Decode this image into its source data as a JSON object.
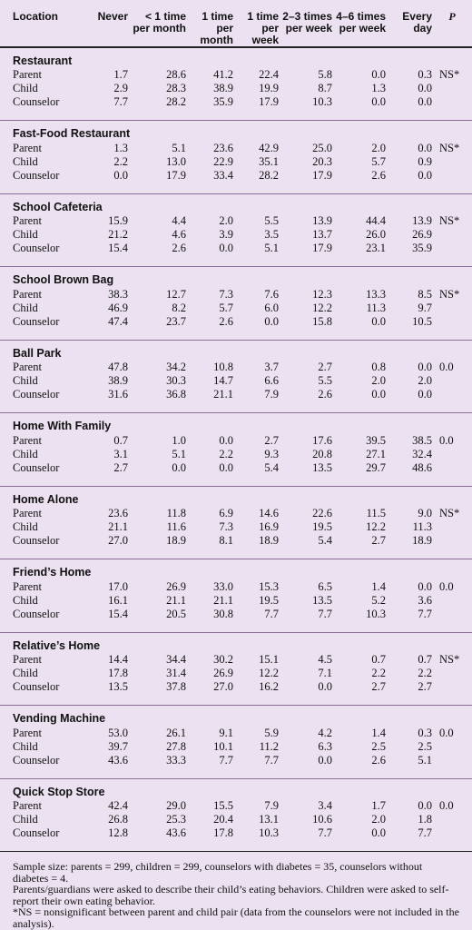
{
  "columns": [
    "Location",
    "Never",
    "< 1 time per month",
    "1 time per month",
    "1 time per week",
    "2–3 times per week",
    "4–6 times per week",
    "Every day",
    "P"
  ],
  "groups": [
    {
      "title": "Restaurant",
      "p": "NS*",
      "rows": [
        {
          "role": "Parent",
          "values": [
            "1.7",
            "28.6",
            "41.2",
            "22.4",
            "5.8",
            "0.0",
            "0.3"
          ]
        },
        {
          "role": "Child",
          "values": [
            "2.9",
            "28.3",
            "38.9",
            "19.9",
            "8.7",
            "1.3",
            "0.0"
          ]
        },
        {
          "role": "Counselor",
          "values": [
            "7.7",
            "28.2",
            "35.9",
            "17.9",
            "10.3",
            "0.0",
            "0.0"
          ]
        }
      ]
    },
    {
      "title": "Fast-Food Restaurant",
      "p": "NS*",
      "rows": [
        {
          "role": "Parent",
          "values": [
            "1.3",
            "5.1",
            "23.6",
            "42.9",
            "25.0",
            "2.0",
            "0.0"
          ]
        },
        {
          "role": "Child",
          "values": [
            "2.2",
            "13.0",
            "22.9",
            "35.1",
            "20.3",
            "5.7",
            "0.9"
          ]
        },
        {
          "role": "Counselor",
          "values": [
            "0.0",
            "17.9",
            "33.4",
            "28.2",
            "17.9",
            "2.6",
            "0.0"
          ]
        }
      ]
    },
    {
      "title": "School Cafeteria",
      "p": "NS*",
      "rows": [
        {
          "role": "Parent",
          "values": [
            "15.9",
            "4.4",
            "2.0",
            "5.5",
            "13.9",
            "44.4",
            "13.9"
          ]
        },
        {
          "role": "Child",
          "values": [
            "21.2",
            "4.6",
            "3.9",
            "3.5",
            "13.7",
            "26.0",
            "26.9"
          ]
        },
        {
          "role": "Counselor",
          "values": [
            "15.4",
            "2.6",
            "0.0",
            "5.1",
            "17.9",
            "23.1",
            "35.9"
          ]
        }
      ]
    },
    {
      "title": "School Brown Bag",
      "p": "NS*",
      "rows": [
        {
          "role": "Parent",
          "values": [
            "38.3",
            "12.7",
            "7.3",
            "7.6",
            "12.3",
            "13.3",
            "8.5"
          ]
        },
        {
          "role": "Child",
          "values": [
            "46.9",
            "8.2",
            "5.7",
            "6.0",
            "12.2",
            "11.3",
            "9.7"
          ]
        },
        {
          "role": "Counselor",
          "values": [
            "47.4",
            "23.7",
            "2.6",
            "0.0",
            "15.8",
            "0.0",
            "10.5"
          ]
        }
      ]
    },
    {
      "title": "Ball Park",
      "p": "0.0",
      "rows": [
        {
          "role": "Parent",
          "values": [
            "47.8",
            "34.2",
            "10.8",
            "3.7",
            "2.7",
            "0.8",
            "0.0"
          ]
        },
        {
          "role": "Child",
          "values": [
            "38.9",
            "30.3",
            "14.7",
            "6.6",
            "5.5",
            "2.0",
            "2.0"
          ]
        },
        {
          "role": "Counselor",
          "values": [
            "31.6",
            "36.8",
            "21.1",
            "7.9",
            "2.6",
            "0.0",
            "0.0"
          ]
        }
      ]
    },
    {
      "title": "Home With Family",
      "p": "0.0",
      "rows": [
        {
          "role": "Parent",
          "values": [
            "0.7",
            "1.0",
            "0.0",
            "2.7",
            "17.6",
            "39.5",
            "38.5"
          ]
        },
        {
          "role": "Child",
          "values": [
            "3.1",
            "5.1",
            "2.2",
            "9.3",
            "20.8",
            "27.1",
            "32.4"
          ]
        },
        {
          "role": "Counselor",
          "values": [
            "2.7",
            "0.0",
            "0.0",
            "5.4",
            "13.5",
            "29.7",
            "48.6"
          ]
        }
      ]
    },
    {
      "title": "Home Alone",
      "p": "NS*",
      "rows": [
        {
          "role": "Parent",
          "values": [
            "23.6",
            "11.8",
            "6.9",
            "14.6",
            "22.6",
            "11.5",
            "9.0"
          ]
        },
        {
          "role": "Child",
          "values": [
            "21.1",
            "11.6",
            "7.3",
            "16.9",
            "19.5",
            "12.2",
            "11.3"
          ]
        },
        {
          "role": "Counselor",
          "values": [
            "27.0",
            "18.9",
            "8.1",
            "18.9",
            "5.4",
            "2.7",
            "18.9"
          ]
        }
      ]
    },
    {
      "title": "Friend’s Home",
      "p": "0.0",
      "rows": [
        {
          "role": "Parent",
          "values": [
            "17.0",
            "26.9",
            "33.0",
            "15.3",
            "6.5",
            "1.4",
            "0.0"
          ]
        },
        {
          "role": "Child",
          "values": [
            "16.1",
            "21.1",
            "21.1",
            "19.5",
            "13.5",
            "5.2",
            "3.6"
          ]
        },
        {
          "role": "Counselor",
          "values": [
            "15.4",
            "20.5",
            "30.8",
            "7.7",
            "7.7",
            "10.3",
            "7.7"
          ]
        }
      ]
    },
    {
      "title": "Relative’s Home",
      "p": "NS*",
      "rows": [
        {
          "role": "Parent",
          "values": [
            "14.4",
            "34.4",
            "30.2",
            "15.1",
            "4.5",
            "0.7",
            "0.7"
          ]
        },
        {
          "role": "Child",
          "values": [
            "17.8",
            "31.4",
            "26.9",
            "12.2",
            "7.1",
            "2.2",
            "2.2"
          ]
        },
        {
          "role": "Counselor",
          "values": [
            "13.5",
            "37.8",
            "27.0",
            "16.2",
            "0.0",
            "2.7",
            "2.7"
          ]
        }
      ]
    },
    {
      "title": "Vending Machine",
      "p": "0.0",
      "rows": [
        {
          "role": "Parent",
          "values": [
            "53.0",
            "26.1",
            "9.1",
            "5.9",
            "4.2",
            "1.4",
            "0.3"
          ]
        },
        {
          "role": "Child",
          "values": [
            "39.7",
            "27.8",
            "10.1",
            "11.2",
            "6.3",
            "2.5",
            "2.5"
          ]
        },
        {
          "role": "Counselor",
          "values": [
            "43.6",
            "33.3",
            "7.7",
            "7.7",
            "0.0",
            "2.6",
            "5.1"
          ]
        }
      ]
    },
    {
      "title": "Quick Stop Store",
      "p": "0.0",
      "rows": [
        {
          "role": "Parent",
          "values": [
            "42.4",
            "29.0",
            "15.5",
            "7.9",
            "3.4",
            "1.7",
            "0.0"
          ]
        },
        {
          "role": "Child",
          "values": [
            "26.8",
            "25.3",
            "20.4",
            "13.1",
            "10.6",
            "2.0",
            "1.8"
          ]
        },
        {
          "role": "Counselor",
          "values": [
            "12.8",
            "43.6",
            "17.8",
            "10.3",
            "7.7",
            "0.0",
            "7.7"
          ]
        }
      ]
    }
  ],
  "notes": [
    "Sample size: parents = 299, children = 299, counselors with diabetes = 35, counselors without diabetes = 4.",
    "Parents/guardians were asked to describe their child’s eating behaviors. Children were asked to self-report their own eating behavior.",
    "*NS = nonsignificant between parent and child pair (data from the counselors were not included in the analysis)."
  ],
  "colors": {
    "background": "#ece1f0",
    "rule": "#222222",
    "separator": "#8a6d94"
  }
}
